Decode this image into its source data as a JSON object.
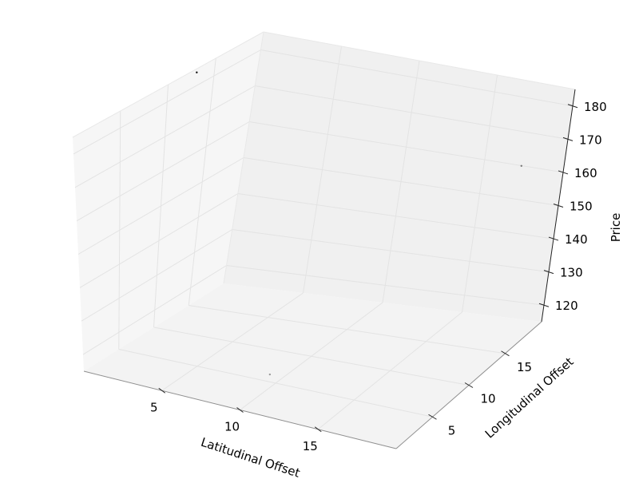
{
  "chart_data": {
    "type": "scatter3d",
    "title": "",
    "xlabel": "Latitudinal Offset",
    "ylabel": "Longitudinal Offset",
    "zlabel": "Price",
    "xticks": [
      5,
      10,
      15
    ],
    "yticks": [
      5,
      10,
      15
    ],
    "zticks": [
      120,
      130,
      140,
      150,
      160,
      170,
      180
    ],
    "xlim": [
      0,
      20
    ],
    "ylim": [
      0,
      20
    ],
    "zlim": [
      115,
      185
    ],
    "grid": true,
    "pane_colors": {
      "back": "#f0f0f0",
      "side": "#f6f6f6",
      "floor": "#f3f3f3"
    },
    "grid_color": "#e3e3e3",
    "edge_color": "#8f8f8f",
    "points": [
      {
        "x": 0.3,
        "y": 12.5,
        "z": 185,
        "color": "#111111"
      },
      {
        "x": 19.5,
        "y": 15.5,
        "z": 170,
        "color": "#777777"
      },
      {
        "x": 9.8,
        "y": 4.6,
        "z": 118,
        "color": "#999999"
      }
    ]
  }
}
